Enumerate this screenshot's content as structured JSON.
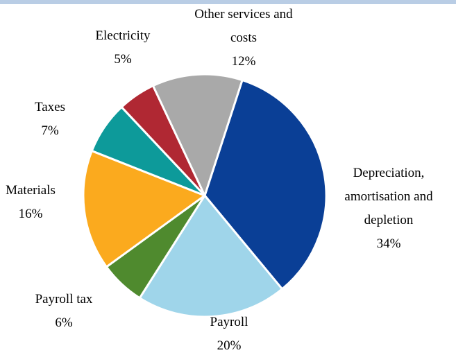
{
  "chart_data": {
    "type": "pie",
    "slices": [
      {
        "label_lines": [
          "Depreciation,",
          "amortisation and",
          "depletion"
        ],
        "pct_label": "34%",
        "value": 34,
        "color": "#0a3f96"
      },
      {
        "label_lines": [
          "Payroll"
        ],
        "pct_label": "20%",
        "value": 20,
        "color": "#9fd5ea"
      },
      {
        "label_lines": [
          "Payroll tax"
        ],
        "pct_label": "6%",
        "value": 6,
        "color": "#4f8a2e"
      },
      {
        "label_lines": [
          "Materials"
        ],
        "pct_label": "16%",
        "value": 16,
        "color": "#fbaa1e"
      },
      {
        "label_lines": [
          "Taxes"
        ],
        "pct_label": "7%",
        "value": 7,
        "color": "#0d9a9a"
      },
      {
        "label_lines": [
          "Electricity"
        ],
        "pct_label": "5%",
        "value": 5,
        "color": "#b02833"
      },
      {
        "label_lines": [
          "Other services and",
          "costs"
        ],
        "pct_label": "12%",
        "value": 12,
        "color": "#a9a9a9"
      }
    ],
    "legend": "none",
    "labels": "outside, category and percentage"
  }
}
